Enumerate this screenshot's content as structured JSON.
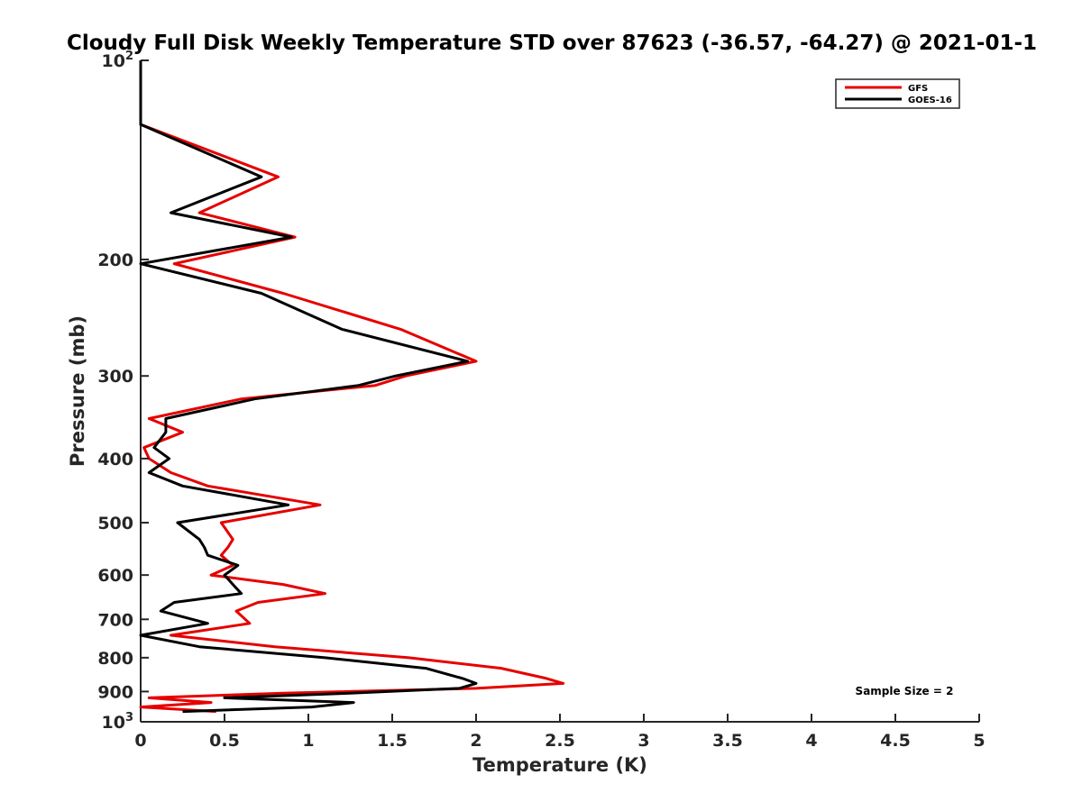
{
  "chart_data": {
    "type": "line",
    "title": "Cloudy Full Disk Weekly Temperature STD over 87623 (-36.57, -64.27) @ 2021-01-1",
    "xlabel": "Temperature (K)",
    "ylabel": "Pressure (mb)",
    "xlim": [
      0,
      5
    ],
    "ylim": [
      100,
      1000
    ],
    "y_scale": "log",
    "y_reversed": true,
    "grid": false,
    "x_ticks": [
      "0",
      "0.5",
      "1",
      "1.5",
      "2",
      "2.5",
      "3",
      "3.5",
      "4",
      "4.5",
      "5"
    ],
    "y_ticks": [
      {
        "value": 100,
        "base": "10",
        "exp": "2"
      },
      {
        "value": 200,
        "label": "200"
      },
      {
        "value": 300,
        "label": "300"
      },
      {
        "value": 400,
        "label": "400"
      },
      {
        "value": 500,
        "label": "500"
      },
      {
        "value": 600,
        "label": "600"
      },
      {
        "value": 700,
        "label": "700"
      },
      {
        "value": 800,
        "label": "800"
      },
      {
        "value": 900,
        "label": "900"
      },
      {
        "value": 1000,
        "base": "10",
        "exp": "3"
      }
    ],
    "legend_position": "top-right",
    "series": [
      {
        "name": "GFS",
        "color": "#e60000",
        "points": [
          [
            0,
            100
          ],
          [
            0,
            125
          ],
          [
            0.82,
            150
          ],
          [
            0.35,
            170
          ],
          [
            0.92,
            185
          ],
          [
            0.2,
            203
          ],
          [
            0.85,
            225
          ],
          [
            1.55,
            255
          ],
          [
            2.0,
            285
          ],
          [
            1.58,
            300
          ],
          [
            1.4,
            310
          ],
          [
            0.6,
            325
          ],
          [
            0.05,
            348
          ],
          [
            0.25,
            365
          ],
          [
            0.02,
            385
          ],
          [
            0.05,
            400
          ],
          [
            0.18,
            420
          ],
          [
            0.4,
            440
          ],
          [
            1.07,
            470
          ],
          [
            0.48,
            500
          ],
          [
            0.55,
            530
          ],
          [
            0.52,
            545
          ],
          [
            0.48,
            560
          ],
          [
            0.55,
            580
          ],
          [
            0.42,
            600
          ],
          [
            0.85,
            620
          ],
          [
            1.1,
            640
          ],
          [
            0.7,
            660
          ],
          [
            0.57,
            680
          ],
          [
            0.65,
            710
          ],
          [
            0.18,
            740
          ],
          [
            0.8,
            770
          ],
          [
            1.6,
            800
          ],
          [
            2.15,
            830
          ],
          [
            2.42,
            860
          ],
          [
            2.52,
            875
          ],
          [
            2.0,
            890
          ],
          [
            0.85,
            905
          ],
          [
            0.05,
            920
          ],
          [
            0.42,
            935
          ],
          [
            0.0,
            950
          ],
          [
            0.45,
            965
          ]
        ]
      },
      {
        "name": "GOES-16",
        "color": "#000000",
        "points": [
          [
            0,
            100
          ],
          [
            0,
            125
          ],
          [
            0.72,
            150
          ],
          [
            0.18,
            170
          ],
          [
            0.9,
            185
          ],
          [
            0.0,
            203
          ],
          [
            0.72,
            225
          ],
          [
            1.2,
            255
          ],
          [
            1.95,
            285
          ],
          [
            1.52,
            300
          ],
          [
            1.3,
            310
          ],
          [
            0.68,
            325
          ],
          [
            0.15,
            348
          ],
          [
            0.15,
            365
          ],
          [
            0.08,
            385
          ],
          [
            0.17,
            400
          ],
          [
            0.05,
            420
          ],
          [
            0.25,
            440
          ],
          [
            0.88,
            470
          ],
          [
            0.22,
            500
          ],
          [
            0.35,
            530
          ],
          [
            0.38,
            545
          ],
          [
            0.4,
            560
          ],
          [
            0.58,
            580
          ],
          [
            0.5,
            600
          ],
          [
            0.55,
            620
          ],
          [
            0.6,
            640
          ],
          [
            0.2,
            660
          ],
          [
            0.12,
            680
          ],
          [
            0.4,
            710
          ],
          [
            0.0,
            740
          ],
          [
            0.35,
            770
          ],
          [
            1.1,
            800
          ],
          [
            1.7,
            830
          ],
          [
            1.92,
            860
          ],
          [
            2.0,
            875
          ],
          [
            1.9,
            890
          ],
          [
            1.25,
            905
          ],
          [
            0.5,
            920
          ],
          [
            1.27,
            935
          ],
          [
            1.02,
            950
          ],
          [
            0.25,
            965
          ]
        ]
      }
    ],
    "annotation": "Sample Size = 2"
  }
}
